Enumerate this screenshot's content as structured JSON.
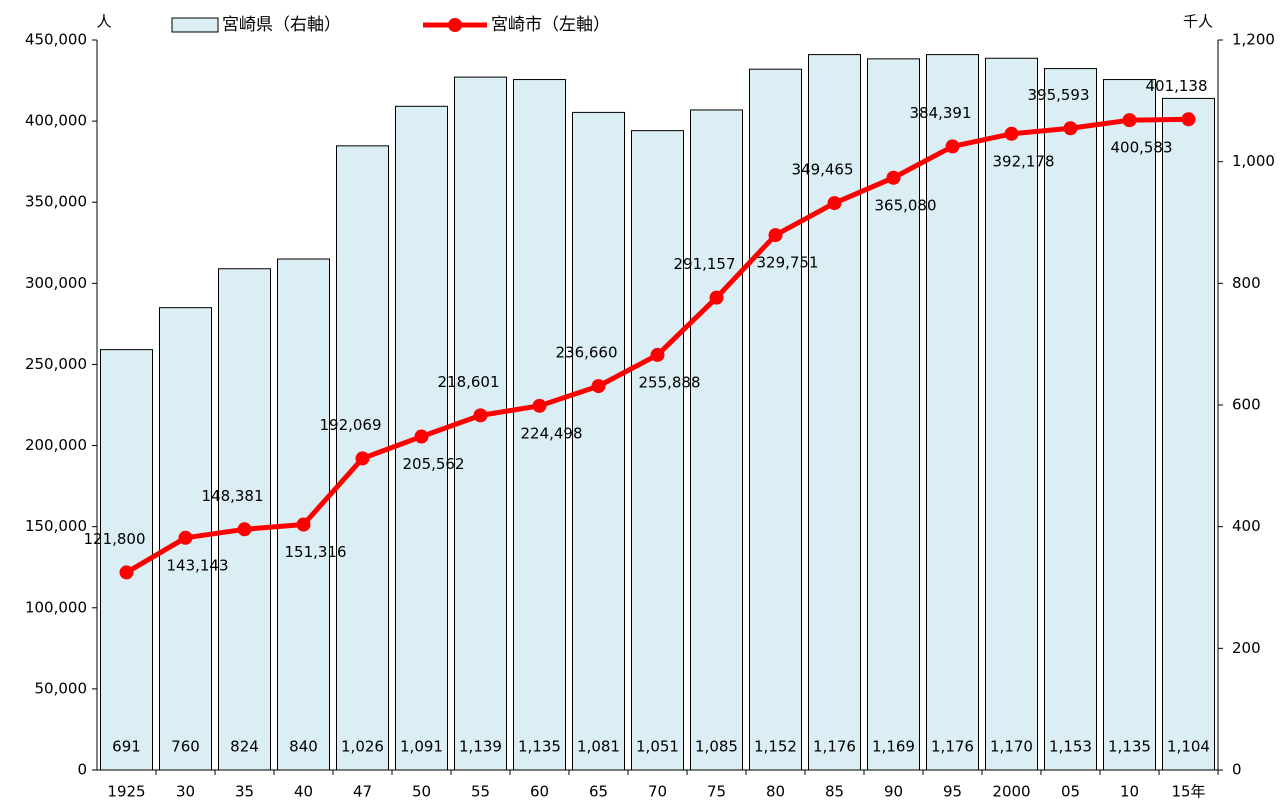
{
  "chart_data": {
    "type": "bar",
    "y_label": "人",
    "y2_label": "千人",
    "categories": [
      "1925",
      "30",
      "35",
      "40",
      "47",
      "50",
      "55",
      "60",
      "65",
      "70",
      "75",
      "80",
      "85",
      "90",
      "95",
      "2000",
      "05",
      "10",
      "15年"
    ],
    "series": [
      {
        "name": "宮崎県（右軸）",
        "type": "bar",
        "axis": "y2",
        "color": "#daeef3",
        "values": [
          691,
          760,
          824,
          840,
          1026,
          1091,
          1139,
          1135,
          1081,
          1051,
          1085,
          1152,
          1176,
          1169,
          1176,
          1170,
          1153,
          1135,
          1104
        ],
        "value_labels": [
          "691",
          "760",
          "824",
          "840",
          "1,026",
          "1,091",
          "1,139",
          "1,135",
          "1,081",
          "1,051",
          "1,085",
          "1,152",
          "1,176",
          "1,169",
          "1,176",
          "1,170",
          "1,153",
          "1,135",
          "1,104"
        ]
      },
      {
        "name": "宮崎市（左軸）",
        "type": "line",
        "axis": "y",
        "color": "#ff0000",
        "values": [
          121800,
          143143,
          148381,
          151316,
          192069,
          205562,
          218601,
          224498,
          236660,
          255888,
          291157,
          329751,
          349465,
          365080,
          384391,
          392178,
          395593,
          400583,
          401138
        ],
        "value_labels": [
          "121,800",
          "143,143",
          "148,381",
          "151,316",
          "192,069",
          "205,562",
          "218,601",
          "224,498",
          "236,660",
          "255,888",
          "291,157",
          "329,751",
          "349,465",
          "365,080",
          "384,391",
          "392,178",
          "395,593",
          "400,583",
          "401,138"
        ]
      }
    ],
    "ylim": [
      0,
      450000
    ],
    "yticks": [
      0,
      {
        "value": 50000,
        "label": "50,000"
      },
      {
        "value": 100000,
        "label": "100,000"
      },
      {
        "value": 150000,
        "label": "150,000"
      },
      {
        "value": 200000,
        "label": "200,000"
      },
      {
        "value": 250000,
        "label": "250,000"
      },
      {
        "value": 300000,
        "label": "300,000"
      },
      {
        "value": 350000,
        "label": "350,000"
      },
      {
        "value": 400000,
        "label": "400,000"
      },
      {
        "value": 450000,
        "label": "450,000"
      }
    ],
    "y2lim": [
      0,
      1200
    ],
    "y2ticks": [
      0,
      200,
      400,
      600,
      800,
      {
        "value": 1000,
        "label": "1,000"
      },
      {
        "value": 1200,
        "label": "1,200"
      }
    ],
    "grid": false,
    "legend": "top"
  }
}
